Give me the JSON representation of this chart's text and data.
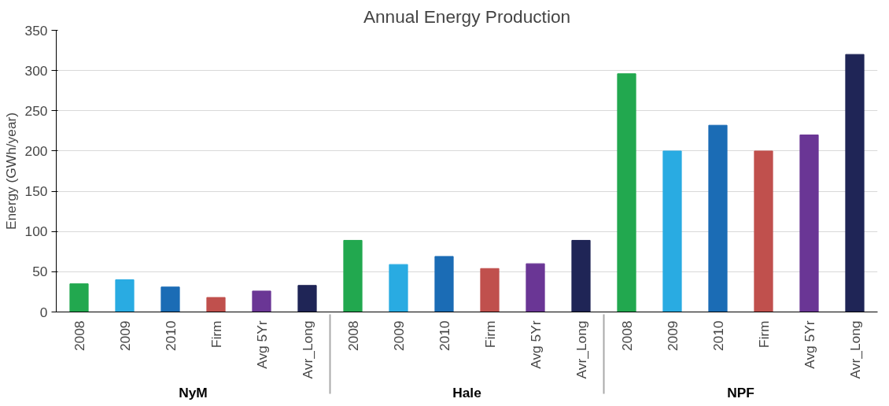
{
  "chart_data": {
    "type": "bar",
    "title": "Annual Energy Production",
    "ylabel": "Energy (GWh/year)",
    "categories": [
      "NyM",
      "Hale",
      "NPF"
    ],
    "series": [
      {
        "name": "2008",
        "color": "#22a84f",
        "values": [
          35,
          89,
          296
        ]
      },
      {
        "name": "2009",
        "color": "#29abe2",
        "values": [
          40,
          59,
          200
        ]
      },
      {
        "name": "2010",
        "color": "#1b6cb5",
        "values": [
          31,
          69,
          232
        ]
      },
      {
        "name": "Firm",
        "color": "#c0504d",
        "values": [
          18,
          54,
          200
        ]
      },
      {
        "name": "Avg 5Yr",
        "color": "#6a3695",
        "values": [
          26,
          60,
          220
        ]
      },
      {
        "name": "Avr_Long",
        "color": "#1f2556",
        "values": [
          33,
          89,
          320
        ]
      }
    ],
    "ylim": [
      0,
      350
    ],
    "yticks": [
      0,
      50,
      100,
      150,
      200,
      250,
      300,
      350
    ],
    "grid": "y"
  }
}
